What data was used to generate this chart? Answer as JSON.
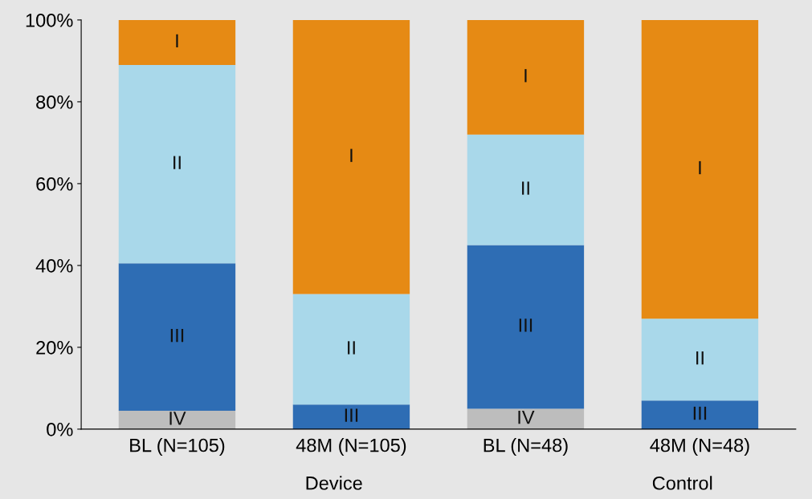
{
  "chart_data": {
    "type": "bar",
    "stacked": true,
    "categories": [
      "BL (N=105)",
      "48M (N=105)",
      "BL (N=48)",
      "48M (N=48)"
    ],
    "series": [
      {
        "name": "IV",
        "color": "#bdbdbd",
        "values": [
          4.5,
          0,
          5,
          0
        ]
      },
      {
        "name": "III",
        "color": "#2e6db4",
        "values": [
          36,
          6,
          40,
          7
        ]
      },
      {
        "name": "II",
        "color": "#a9d8ea",
        "values": [
          48.5,
          27,
          27,
          20
        ]
      },
      {
        "name": "I",
        "color": "#e68a14",
        "values": [
          11,
          67,
          28,
          73
        ]
      }
    ],
    "ylim": [
      0,
      100
    ],
    "yticks": [
      {
        "value": 0,
        "label": "0%"
      },
      {
        "value": 20,
        "label": "20%"
      },
      {
        "value": 40,
        "label": "40%"
      },
      {
        "value": 60,
        "label": "60%"
      },
      {
        "value": 80,
        "label": "80%"
      },
      {
        "value": 100,
        "label": "100%"
      }
    ],
    "annotations": [
      "Device",
      "Control"
    ],
    "grid": false,
    "legend": false
  }
}
